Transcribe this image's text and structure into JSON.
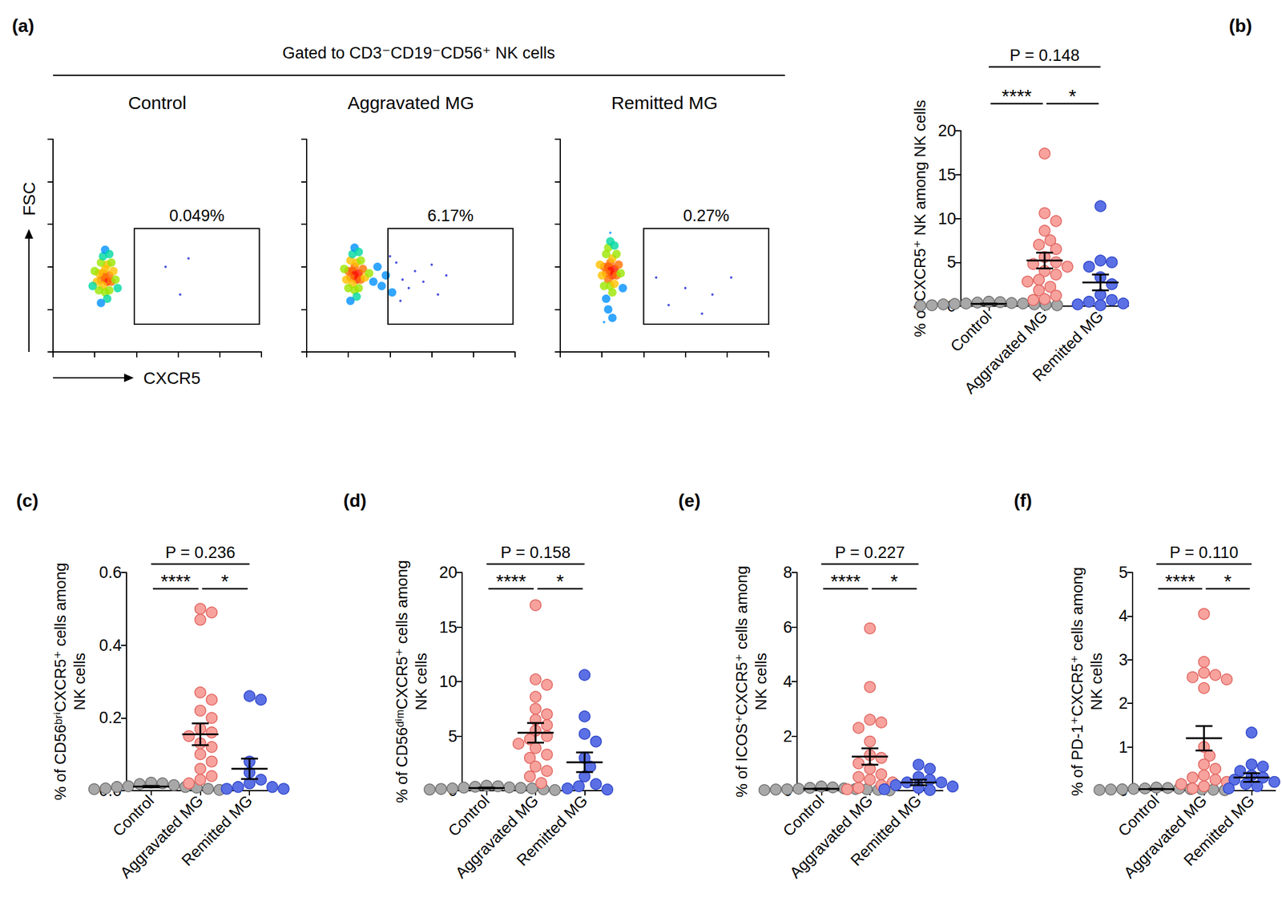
{
  "chart_data": [
    {
      "type": "density",
      "panel": "(a)",
      "header": "Gated to CD3⁻CD19⁻CD56⁺ NK cells",
      "title": "Control",
      "xlabel": "CXCR5",
      "ylabel": "FSC",
      "xlim": [
        0,
        100
      ],
      "ylim": [
        0,
        100
      ],
      "xticks": [
        0,
        20,
        40,
        60,
        80,
        100
      ],
      "yticks": [
        0,
        20,
        40,
        60,
        80,
        100
      ],
      "tick_labels": false,
      "grid": false,
      "points": [
        [
          25,
          35
        ],
        [
          24,
          37
        ],
        [
          26,
          33
        ],
        [
          23,
          34
        ],
        [
          27,
          36
        ],
        [
          25,
          39
        ],
        [
          24,
          31
        ],
        [
          26,
          41
        ],
        [
          22,
          37
        ],
        [
          28,
          33
        ],
        [
          25,
          28
        ],
        [
          23,
          42
        ],
        [
          27,
          29
        ],
        [
          21,
          33
        ],
        [
          29,
          38
        ],
        [
          24,
          45
        ],
        [
          26,
          25
        ],
        [
          22,
          29
        ],
        [
          28,
          42
        ],
        [
          20,
          38
        ],
        [
          30,
          34
        ],
        [
          25,
          48
        ],
        [
          23,
          23
        ],
        [
          27,
          46
        ],
        [
          19,
          31
        ],
        [
          31,
          30
        ],
        [
          54,
          40
        ],
        [
          61,
          27
        ],
        [
          65,
          44
        ]
      ],
      "gate": {
        "x": [
          39,
          99
        ],
        "y": [
          13,
          58
        ],
        "label": "0.049%"
      }
    },
    {
      "type": "density",
      "title": "Aggravated MG",
      "xlim": [
        0,
        100
      ],
      "ylim": [
        0,
        100
      ],
      "xticks": [
        0,
        20,
        40,
        60,
        80,
        100
      ],
      "yticks": [
        0,
        20,
        40,
        60,
        80,
        100
      ],
      "tick_labels": false,
      "grid": false,
      "points": [
        [
          23,
          36
        ],
        [
          22,
          38
        ],
        [
          24,
          34
        ],
        [
          21,
          35
        ],
        [
          25,
          37
        ],
        [
          23,
          40
        ],
        [
          22,
          32
        ],
        [
          24,
          42
        ],
        [
          20,
          38
        ],
        [
          26,
          34
        ],
        [
          23,
          29
        ],
        [
          21,
          43
        ],
        [
          25,
          30
        ],
        [
          19,
          34
        ],
        [
          27,
          39
        ],
        [
          22,
          46
        ],
        [
          24,
          26
        ],
        [
          20,
          30
        ],
        [
          26,
          43
        ],
        [
          18,
          39
        ],
        [
          28,
          35
        ],
        [
          23,
          49
        ],
        [
          21,
          24
        ],
        [
          25,
          47
        ],
        [
          30,
          37
        ],
        [
          32,
          33
        ],
        [
          34,
          40
        ],
        [
          36,
          31
        ],
        [
          38,
          36
        ],
        [
          41,
          28
        ],
        [
          43,
          42
        ],
        [
          46,
          34
        ],
        [
          49,
          30
        ],
        [
          52,
          38
        ],
        [
          56,
          33
        ],
        [
          60,
          41
        ],
        [
          63,
          27
        ],
        [
          67,
          36
        ],
        [
          45,
          24
        ],
        [
          40,
          45
        ]
      ],
      "gate": {
        "x": [
          39,
          99
        ],
        "y": [
          13,
          58
        ],
        "label": "6.17%"
      }
    },
    {
      "type": "density",
      "title": "Remitted MG",
      "xlim": [
        0,
        100
      ],
      "ylim": [
        0,
        100
      ],
      "xticks": [
        0,
        20,
        40,
        60,
        80,
        100
      ],
      "yticks": [
        0,
        20,
        40,
        60,
        80,
        100
      ],
      "tick_labels": false,
      "grid": false,
      "points": [
        [
          24,
          38
        ],
        [
          23,
          40
        ],
        [
          25,
          36
        ],
        [
          22,
          37
        ],
        [
          26,
          39
        ],
        [
          24,
          42
        ],
        [
          23,
          34
        ],
        [
          25,
          44
        ],
        [
          21,
          40
        ],
        [
          27,
          36
        ],
        [
          24,
          31
        ],
        [
          22,
          46
        ],
        [
          26,
          32
        ],
        [
          20,
          36
        ],
        [
          28,
          41
        ],
        [
          23,
          49
        ],
        [
          25,
          28
        ],
        [
          21,
          31
        ],
        [
          27,
          46
        ],
        [
          19,
          41
        ],
        [
          29,
          37
        ],
        [
          24,
          52
        ],
        [
          22,
          25
        ],
        [
          26,
          50
        ],
        [
          23,
          20
        ],
        [
          25,
          16
        ],
        [
          24,
          56
        ],
        [
          30,
          30
        ],
        [
          21,
          14
        ],
        [
          46,
          35
        ],
        [
          52,
          22
        ],
        [
          60,
          30
        ],
        [
          68,
          18
        ],
        [
          73,
          27
        ],
        [
          82,
          35
        ]
      ],
      "gate": {
        "x": [
          40,
          100
        ],
        "y": [
          13,
          58
        ],
        "label": "0.27%"
      }
    },
    {
      "type": "strip",
      "panel": "(b)",
      "ylabel": "% of CXCR5⁺ NK among NK cells",
      "categories": [
        "Control",
        "Aggravated MG",
        "Remitted MG"
      ],
      "colors": [
        "#a8a8a8",
        "#f7a29d",
        "#5b70e4"
      ],
      "ylim": [
        0,
        20
      ],
      "yticks": [
        0,
        5,
        10,
        15,
        20
      ],
      "grid": false,
      "values": [
        [
          0.05,
          0.1,
          0.1,
          0.15,
          0.2,
          0.2,
          0.25,
          0.3,
          0.3,
          0.35,
          0.4,
          0.45,
          0.5
        ],
        [
          17.4,
          10.6,
          9.7,
          8.6,
          7.5,
          7.0,
          6.5,
          5.6,
          5.0,
          4.8,
          4.5,
          4.0,
          3.6,
          3.0,
          2.8,
          2.2,
          1.8,
          1.2,
          0.8,
          0.7
        ],
        [
          11.4,
          5.2,
          5.0,
          4.5,
          3.3,
          2.5,
          1.3,
          0.7,
          0.5,
          0.3,
          0.2,
          0.1
        ]
      ],
      "mean": [
        0.25,
        5.2,
        2.7
      ],
      "sem": [
        0.04,
        0.9,
        0.9
      ],
      "annotations": [
        {
          "text": "P = 0.148",
          "from": 0,
          "to": 2
        },
        {
          "text": "****",
          "from": 0,
          "to": 1
        },
        {
          "text": "*",
          "from": 1,
          "to": 2
        }
      ]
    },
    {
      "type": "strip",
      "panel": "(c)",
      "ylabel": "% of CD56ᵇʳⁱCXCR5⁺ cells among\nNK cells",
      "categories": [
        "Control",
        "Aggravated MG",
        "Remitted MG"
      ],
      "colors": [
        "#a8a8a8",
        "#f7a29d",
        "#5b70e4"
      ],
      "ylim": [
        0,
        0.6
      ],
      "yticks": [
        {
          "value": 0,
          "label": "0.0"
        },
        0.2,
        0.4,
        0.6
      ],
      "grid": false,
      "values": [
        [
          0.002,
          0.004,
          0.005,
          0.006,
          0.008,
          0.01,
          0.01,
          0.012,
          0.015,
          0.018,
          0.02,
          0.022
        ],
        [
          0.5,
          0.49,
          0.47,
          0.27,
          0.25,
          0.22,
          0.2,
          0.17,
          0.16,
          0.15,
          0.13,
          0.12,
          0.1,
          0.08,
          0.06,
          0.04,
          0.03,
          0.02
        ],
        [
          0.26,
          0.25,
          0.08,
          0.05,
          0.03,
          0.02,
          0.01,
          0.01,
          0.005,
          0.005
        ]
      ],
      "mean": [
        0.011,
        0.155,
        0.06
      ],
      "sem": [
        0.002,
        0.03,
        0.028
      ],
      "annotations": [
        {
          "text": "P = 0.236",
          "from": 0,
          "to": 2
        },
        {
          "text": "****",
          "from": 0,
          "to": 1
        },
        {
          "text": "*",
          "from": 1,
          "to": 2
        }
      ]
    },
    {
      "type": "strip",
      "panel": "(d)",
      "ylabel": "% of CD56ᵈⁱᵐCXCR5⁺ cells among\nNK cells",
      "categories": [
        "Control",
        "Aggravated MG",
        "Remitted MG"
      ],
      "colors": [
        "#a8a8a8",
        "#f7a29d",
        "#5b70e4"
      ],
      "ylim": [
        0,
        20
      ],
      "yticks": [
        0,
        5,
        10,
        15,
        20
      ],
      "grid": false,
      "values": [
        [
          0.05,
          0.1,
          0.12,
          0.15,
          0.2,
          0.2,
          0.25,
          0.28,
          0.3,
          0.35,
          0.4,
          0.45
        ],
        [
          17.0,
          10.2,
          9.7,
          8.6,
          7.5,
          7.0,
          6.5,
          6.0,
          5.5,
          5.0,
          4.7,
          4.3,
          3.9,
          3.3,
          3.0,
          2.2,
          1.8,
          1.3,
          0.7
        ],
        [
          10.6,
          6.8,
          5.2,
          4.5,
          3.0,
          2.2,
          1.3,
          0.6,
          0.4,
          0.2,
          0.1
        ]
      ],
      "mean": [
        0.24,
        5.3,
        2.6
      ],
      "sem": [
        0.04,
        0.9,
        0.9
      ],
      "annotations": [
        {
          "text": "P = 0.158",
          "from": 0,
          "to": 2
        },
        {
          "text": "****",
          "from": 0,
          "to": 1
        },
        {
          "text": "*",
          "from": 1,
          "to": 2
        }
      ]
    },
    {
      "type": "strip",
      "panel": "(e)",
      "ylabel": "% of ICOS⁺CXCR5⁺ cells among\nNK cells",
      "categories": [
        "Control",
        "Aggravated MG",
        "Remitted MG"
      ],
      "colors": [
        "#a8a8a8",
        "#f7a29d",
        "#5b70e4"
      ],
      "ylim": [
        0,
        8
      ],
      "yticks": [
        0,
        2,
        4,
        6,
        8
      ],
      "grid": false,
      "values": [
        [
          0.01,
          0.02,
          0.03,
          0.04,
          0.05,
          0.05,
          0.06,
          0.07,
          0.08,
          0.1,
          0.12,
          0.15
        ],
        [
          5.95,
          3.8,
          2.6,
          2.5,
          2.3,
          1.8,
          1.3,
          1.2,
          1.0,
          0.8,
          0.6,
          0.5,
          0.4,
          0.3,
          0.2,
          0.1,
          0.05
        ],
        [
          0.95,
          0.8,
          0.5,
          0.4,
          0.3,
          0.3,
          0.2,
          0.15,
          0.1,
          0.05,
          0.02
        ]
      ],
      "mean": [
        0.065,
        1.25,
        0.3
      ],
      "sem": [
        0.012,
        0.3,
        0.1
      ],
      "annotations": [
        {
          "text": "P = 0.227",
          "from": 0,
          "to": 2
        },
        {
          "text": "****",
          "from": 0,
          "to": 1
        },
        {
          "text": "*",
          "from": 1,
          "to": 2
        }
      ]
    },
    {
      "type": "strip",
      "panel": "(f)",
      "ylabel": "% of PD-1⁺CXCR5⁺ cells among\nNK cells",
      "categories": [
        "Control",
        "Aggravated MG",
        "Remitted MG"
      ],
      "colors": [
        "#a8a8a8",
        "#f7a29d",
        "#5b70e4"
      ],
      "ylim": [
        0,
        5
      ],
      "yticks": [
        0,
        1,
        2,
        3,
        4,
        5
      ],
      "grid": false,
      "values": [
        [
          0.01,
          0.015,
          0.02,
          0.025,
          0.03,
          0.03,
          0.035,
          0.04,
          0.045,
          0.05,
          0.06,
          0.07
        ],
        [
          4.05,
          2.95,
          2.7,
          2.65,
          2.6,
          2.55,
          2.35,
          1.0,
          0.8,
          0.6,
          0.5,
          0.35,
          0.3,
          0.25,
          0.2,
          0.15,
          0.1,
          0.05
        ],
        [
          1.33,
          0.6,
          0.55,
          0.45,
          0.35,
          0.3,
          0.25,
          0.2,
          0.15,
          0.1,
          0.05
        ]
      ],
      "mean": [
        0.036,
        1.2,
        0.3
      ],
      "sem": [
        0.005,
        0.28,
        0.1
      ],
      "annotations": [
        {
          "text": "P = 0.110",
          "from": 0,
          "to": 2
        },
        {
          "text": "****",
          "from": 0,
          "to": 1
        },
        {
          "text": "*",
          "from": 1,
          "to": 2
        }
      ]
    }
  ]
}
